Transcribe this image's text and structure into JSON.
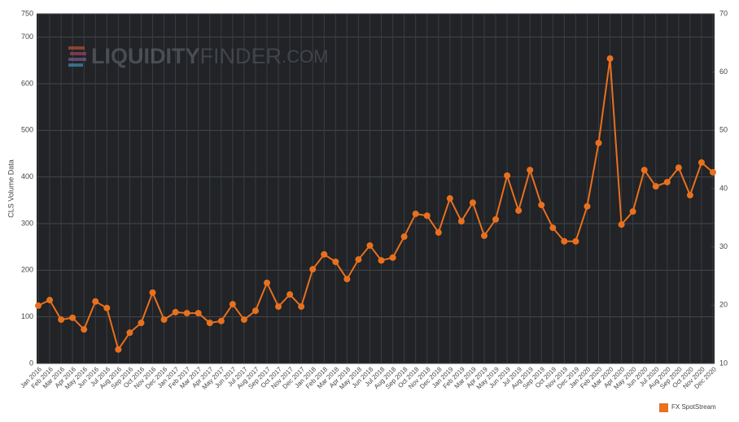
{
  "chart_data": {
    "type": "line",
    "watermark": {
      "part1": "LIQUIDITY",
      "part2": "FINDER",
      "part3": ".COM"
    },
    "ylabel": "CLS Volume Data",
    "categories": [
      "Jan 2016",
      "Feb 2016",
      "Mar 2016",
      "Apr 2016",
      "May 2016",
      "Jun 2016",
      "Jul 2016",
      "Aug 2016",
      "Sep 2016",
      "Oct 2016",
      "Nov 2016",
      "Dec 2016",
      "Jan 2017",
      "Feb 2017",
      "Mar 2017",
      "Apr 2017",
      "May 2017",
      "Jun 2017",
      "Jul 2017",
      "Aug 2017",
      "Sep 2017",
      "Oct 2017",
      "Nov 2017",
      "Dec 2017",
      "Jan 2018",
      "Feb 2018",
      "Mar 2018",
      "Apr 2018",
      "May 2018",
      "Jun 2018",
      "Jul 2018",
      "Aug 2018",
      "Sep 2018",
      "Oct 2018",
      "Nov 2018",
      "Dec 2018",
      "Jan 2019",
      "Feb 2019",
      "Mar 2019",
      "Apr 2019",
      "May 2019",
      "Jun 2019",
      "Jul 2019",
      "Aug 2019",
      "Sep 2019",
      "Oct 2019",
      "Nov 2019",
      "Dec 2019",
      "Jan 2020",
      "Feb 2020",
      "Mar 2020",
      "Apr 2020",
      "May 2020",
      "Jun 2020",
      "Jul 2020",
      "Aug 2020",
      "Sep 2020",
      "Oct 2020",
      "Nov 2020",
      "Dec 2020"
    ],
    "series": [
      {
        "name": "FX SpotStream",
        "color": "#e8701e",
        "values": [
          124,
          136,
          94,
          98,
          73,
          133,
          119,
          30,
          66,
          87,
          152,
          94,
          110,
          108,
          108,
          87,
          91,
          127,
          94,
          113,
          173,
          122,
          148,
          122,
          202,
          234,
          218,
          181,
          223,
          253,
          221,
          227,
          272,
          321,
          317,
          281,
          354,
          305,
          345,
          274,
          309,
          403,
          328,
          415,
          340,
          291,
          262,
          262,
          337,
          473,
          654,
          298,
          326,
          415,
          380,
          389,
          420,
          361,
          431,
          410
        ]
      }
    ],
    "ylim": [
      0,
      750
    ],
    "yticks": [
      0,
      100,
      200,
      300,
      400,
      500,
      600,
      700,
      750
    ],
    "y2lim": [
      10,
      70
    ],
    "y2ticks": [
      10,
      20,
      30,
      40,
      50,
      60,
      70
    ],
    "grid": true,
    "legend": "bottom-right"
  }
}
